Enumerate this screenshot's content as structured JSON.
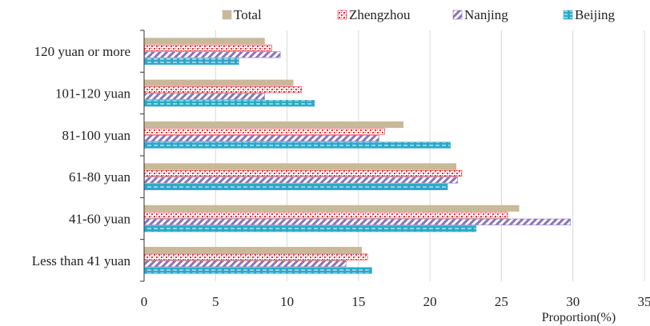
{
  "chart_data": {
    "type": "bar",
    "orientation": "horizontal",
    "categories": [
      "120 yuan or more",
      "101-120 yuan",
      "81-100 yuan",
      "61-80 yuan",
      "41-60 yuan",
      "Less than 41 yuan"
    ],
    "series": [
      {
        "name": "Total",
        "values": [
          8.4,
          10.4,
          18.1,
          21.8,
          26.2,
          15.2
        ],
        "color": "#c8b99a",
        "pattern": "solid"
      },
      {
        "name": "Zhengzhou",
        "values": [
          8.9,
          11.0,
          16.8,
          22.2,
          25.4,
          15.6
        ],
        "color": "#e8303a",
        "pattern": "dots"
      },
      {
        "name": "Nanjing",
        "values": [
          9.5,
          8.4,
          16.4,
          21.9,
          29.8,
          14.1
        ],
        "color": "#8a74b8",
        "pattern": "diagonal"
      },
      {
        "name": "Beijing",
        "values": [
          6.6,
          11.9,
          21.4,
          21.2,
          23.2,
          15.9
        ],
        "color": "#2aa9c8",
        "pattern": "dashed"
      }
    ],
    "xlabel": "Proportion(%)",
    "ylabel": "",
    "title": "",
    "xlim": [
      0,
      35
    ],
    "xticks": [
      "0",
      "5",
      "10",
      "15",
      "20",
      "25",
      "30",
      "35"
    ],
    "grid": "vertical",
    "legend": "top"
  }
}
